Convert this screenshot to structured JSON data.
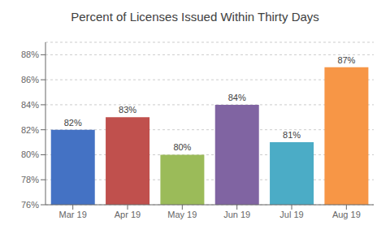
{
  "chart_data": {
    "type": "bar",
    "title": "Percent of Licenses Issued Within Thirty Days",
    "categories": [
      "Mar 19",
      "Apr 19",
      "May 19",
      "Jun 19",
      "Jul 19",
      "Aug 19"
    ],
    "values": [
      0.82,
      0.83,
      0.8,
      0.84,
      0.81,
      0.87
    ],
    "value_labels": [
      "82%",
      "83%",
      "80%",
      "84%",
      "81%",
      "87%"
    ],
    "colors": [
      "#4472C4",
      "#C0504D",
      "#9BBB59",
      "#8064A2",
      "#4BACC6",
      "#F79646"
    ],
    "ylim": [
      0.76,
      0.89
    ],
    "yticks": [
      {
        "value": 0.76,
        "label": "76%"
      },
      {
        "value": 0.78,
        "label": "78%"
      },
      {
        "value": 0.8,
        "label": "80%"
      },
      {
        "value": 0.82,
        "label": "82%"
      },
      {
        "value": 0.84,
        "label": "84%"
      },
      {
        "value": 0.86,
        "label": "86%"
      },
      {
        "value": 0.88,
        "label": "88%"
      }
    ],
    "grid": true,
    "data_labels": true
  }
}
